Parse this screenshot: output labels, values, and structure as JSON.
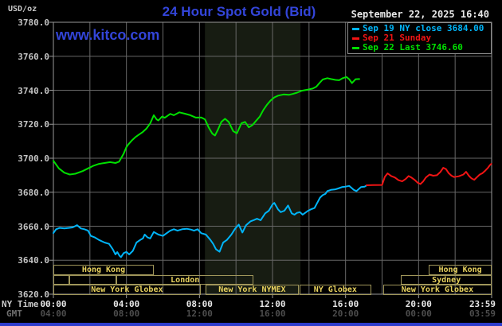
{
  "header": {
    "unit_label": "USD/oz",
    "title": "24 Hour Spot Gold (Bid)",
    "datetime": "September 22, 2025 16:40",
    "watermark": "www.kitco.com"
  },
  "legend": {
    "items": [
      {
        "label": "Sep 19 NY close 3684.00",
        "color": "#00b4f8"
      },
      {
        "label": "Sep 21 Sunday",
        "color": "#f01414"
      },
      {
        "label": "Sep 22 Last 3746.60",
        "color": "#00e000"
      }
    ]
  },
  "colors": {
    "background": "#000000",
    "grid": "#686868",
    "border": "#989898",
    "band": "#171c12",
    "title_blue": "#3345d9",
    "session_border": "#a0965a",
    "session_text": "#e8d25e",
    "bottom_strip": "#2d3ccc"
  },
  "chart_data": {
    "type": "line",
    "title": "24 Hour Spot Gold (Bid)",
    "y_axis": {
      "unit": "USD/oz",
      "min": 3620,
      "max": 3780,
      "tick_step": 20,
      "tick_labels": [
        "3780.0",
        "3760.0",
        "3740.0",
        "3720.0",
        "3700.0",
        "3680.0",
        "3660.0",
        "3640.0",
        "3620.0"
      ]
    },
    "x_axis": {
      "label_ny": "NY Time",
      "label_gmt": "GMT",
      "range_hours": [
        0,
        24
      ],
      "gridline_every_hours": 2,
      "tick_hours": [
        0,
        4,
        8,
        12,
        16,
        20,
        24
      ],
      "ny_ticks": [
        "00:00",
        "04:00",
        "08:00",
        "12:00",
        "16:00",
        "20:00",
        "23:59"
      ],
      "gmt_ticks": [
        "04:00",
        "08:00",
        "12:00",
        "16:00",
        "20:00",
        "00:00",
        "03:59"
      ]
    },
    "highlight_band": {
      "start_hour": 8.3,
      "end_hour": 13.53
    },
    "series": [
      {
        "name": "Sep 19 NY close",
        "color": "#00b4f8",
        "close_value": 3684.0,
        "points": [
          [
            0,
            3656
          ],
          [
            0.15,
            3658.2
          ],
          [
            0.35,
            3659
          ],
          [
            0.6,
            3658.7
          ],
          [
            0.85,
            3659
          ],
          [
            1.05,
            3659.3
          ],
          [
            1.3,
            3660.6
          ],
          [
            1.5,
            3658.7
          ],
          [
            1.7,
            3658.2
          ],
          [
            1.9,
            3657.4
          ],
          [
            2.05,
            3654.3
          ],
          [
            2.25,
            3653.5
          ],
          [
            2.5,
            3651.9
          ],
          [
            2.8,
            3650.4
          ],
          [
            3.05,
            3649.6
          ],
          [
            3.25,
            3646.5
          ],
          [
            3.4,
            3643.4
          ],
          [
            3.5,
            3644.8
          ],
          [
            3.62,
            3642.6
          ],
          [
            3.7,
            3641.8
          ],
          [
            3.85,
            3644.2
          ],
          [
            4.0,
            3644.9
          ],
          [
            4.15,
            3643.4
          ],
          [
            4.35,
            3645.5
          ],
          [
            4.55,
            3650.4
          ],
          [
            4.75,
            3651.9
          ],
          [
            4.9,
            3652.8
          ],
          [
            5.0,
            3655.1
          ],
          [
            5.15,
            3653.5
          ],
          [
            5.3,
            3652.8
          ],
          [
            5.5,
            3656.6
          ],
          [
            5.75,
            3655.1
          ],
          [
            6.0,
            3654.3
          ],
          [
            6.2,
            3655.9
          ],
          [
            6.4,
            3657.4
          ],
          [
            6.6,
            3658.2
          ],
          [
            6.8,
            3657.4
          ],
          [
            7.05,
            3658.2
          ],
          [
            7.3,
            3658.5
          ],
          [
            7.55,
            3658
          ],
          [
            7.7,
            3657.4
          ],
          [
            7.9,
            3658.2
          ],
          [
            8.1,
            3655.9
          ],
          [
            8.35,
            3655.1
          ],
          [
            8.6,
            3651.9
          ],
          [
            8.75,
            3649.6
          ],
          [
            8.9,
            3646.5
          ],
          [
            9.1,
            3645
          ],
          [
            9.3,
            3650.4
          ],
          [
            9.5,
            3651.9
          ],
          [
            9.75,
            3655.1
          ],
          [
            9.95,
            3658.5
          ],
          [
            10.15,
            3661
          ],
          [
            10.35,
            3656.3
          ],
          [
            10.55,
            3660.6
          ],
          [
            10.8,
            3662.9
          ],
          [
            11.0,
            3663.7
          ],
          [
            11.15,
            3664.4
          ],
          [
            11.35,
            3663.5
          ],
          [
            11.6,
            3667.6
          ],
          [
            11.8,
            3669.1
          ],
          [
            12.0,
            3672.8
          ],
          [
            12.1,
            3673.7
          ],
          [
            12.3,
            3669.9
          ],
          [
            12.45,
            3668.3
          ],
          [
            12.65,
            3669.1
          ],
          [
            12.85,
            3672.2
          ],
          [
            13.05,
            3667.6
          ],
          [
            13.2,
            3666.8
          ],
          [
            13.35,
            3667.9
          ],
          [
            13.5,
            3668.3
          ],
          [
            13.65,
            3666.8
          ],
          [
            13.95,
            3669.1
          ],
          [
            14.1,
            3669.9
          ],
          [
            14.3,
            3670.7
          ],
          [
            14.45,
            3673.7
          ],
          [
            14.6,
            3676.8
          ],
          [
            14.75,
            3678.3
          ],
          [
            14.9,
            3679.1
          ],
          [
            15.0,
            3680.7
          ],
          [
            15.2,
            3681.4
          ],
          [
            15.45,
            3681.7
          ],
          [
            15.6,
            3682.2
          ],
          [
            15.8,
            3683
          ],
          [
            16.0,
            3683.3
          ],
          [
            16.2,
            3683.7
          ],
          [
            16.45,
            3681.4
          ],
          [
            16.6,
            3680.7
          ],
          [
            16.85,
            3683
          ],
          [
            17.05,
            3683.3
          ],
          [
            17.15,
            3684
          ]
        ]
      },
      {
        "name": "Sep 21 Sunday",
        "color": "#f01414",
        "points": [
          [
            17.15,
            3684.1
          ],
          [
            17.5,
            3684.2
          ],
          [
            18.0,
            3684.3
          ],
          [
            18.15,
            3689
          ],
          [
            18.3,
            3691.1
          ],
          [
            18.5,
            3689.5
          ],
          [
            18.7,
            3688.7
          ],
          [
            18.9,
            3687.1
          ],
          [
            19.1,
            3686.4
          ],
          [
            19.3,
            3687.9
          ],
          [
            19.45,
            3689.5
          ],
          [
            19.6,
            3688.7
          ],
          [
            19.8,
            3687.1
          ],
          [
            19.95,
            3685.6
          ],
          [
            20.1,
            3684.8
          ],
          [
            20.25,
            3686.4
          ],
          [
            20.4,
            3688.7
          ],
          [
            20.6,
            3690.4
          ],
          [
            20.8,
            3689.7
          ],
          [
            21.0,
            3690
          ],
          [
            21.2,
            3692
          ],
          [
            21.35,
            3694.4
          ],
          [
            21.5,
            3693.6
          ],
          [
            21.65,
            3691.2
          ],
          [
            21.8,
            3689.7
          ],
          [
            21.95,
            3688.9
          ],
          [
            22.2,
            3689.4
          ],
          [
            22.45,
            3690.4
          ],
          [
            22.6,
            3692
          ],
          [
            22.75,
            3689.7
          ],
          [
            22.9,
            3688.1
          ],
          [
            23.05,
            3687.3
          ],
          [
            23.2,
            3688.9
          ],
          [
            23.35,
            3690.4
          ],
          [
            23.5,
            3691.2
          ],
          [
            23.65,
            3692.7
          ],
          [
            23.8,
            3694.4
          ],
          [
            23.9,
            3695.9
          ],
          [
            23.98,
            3696.7
          ]
        ]
      },
      {
        "name": "Sep 22",
        "color": "#00e000",
        "last_value": 3746.6,
        "points": [
          [
            0,
            3698.5
          ],
          [
            0.3,
            3694
          ],
          [
            0.6,
            3691.5
          ],
          [
            0.9,
            3690.4
          ],
          [
            1.2,
            3690.9
          ],
          [
            1.6,
            3692.4
          ],
          [
            1.9,
            3694
          ],
          [
            2.2,
            3695.6
          ],
          [
            2.5,
            3696.7
          ],
          [
            2.8,
            3697.2
          ],
          [
            3.1,
            3697.7
          ],
          [
            3.4,
            3697.2
          ],
          [
            3.6,
            3698
          ],
          [
            3.85,
            3702.7
          ],
          [
            4.0,
            3706.6
          ],
          [
            4.1,
            3708.1
          ],
          [
            4.3,
            3710.5
          ],
          [
            4.5,
            3712.5
          ],
          [
            4.7,
            3714
          ],
          [
            4.9,
            3715.5
          ],
          [
            5.1,
            3717.5
          ],
          [
            5.3,
            3720.5
          ],
          [
            5.5,
            3725.3
          ],
          [
            5.65,
            3722.9
          ],
          [
            5.75,
            3722.2
          ],
          [
            5.95,
            3724.5
          ],
          [
            6.1,
            3723.8
          ],
          [
            6.4,
            3726.1
          ],
          [
            6.6,
            3725.3
          ],
          [
            6.9,
            3727
          ],
          [
            7.2,
            3726.2
          ],
          [
            7.5,
            3725.3
          ],
          [
            7.8,
            3723.9
          ],
          [
            8.1,
            3724
          ],
          [
            8.3,
            3722.9
          ],
          [
            8.5,
            3718.2
          ],
          [
            8.7,
            3714.5
          ],
          [
            8.85,
            3713.4
          ],
          [
            9.0,
            3716.6
          ],
          [
            9.2,
            3721.4
          ],
          [
            9.4,
            3723.2
          ],
          [
            9.6,
            3721.4
          ],
          [
            9.85,
            3715.9
          ],
          [
            10.05,
            3714.7
          ],
          [
            10.3,
            3720.6
          ],
          [
            10.5,
            3721.4
          ],
          [
            10.7,
            3718.2
          ],
          [
            10.9,
            3719.5
          ],
          [
            11.05,
            3721.4
          ],
          [
            11.3,
            3724.5
          ],
          [
            11.5,
            3728.4
          ],
          [
            11.7,
            3731.5
          ],
          [
            11.9,
            3734
          ],
          [
            12.1,
            3735.8
          ],
          [
            12.3,
            3736.8
          ],
          [
            12.6,
            3737.5
          ],
          [
            12.9,
            3737.3
          ],
          [
            13.1,
            3737.8
          ],
          [
            13.35,
            3738.6
          ],
          [
            13.6,
            3739.7
          ],
          [
            13.9,
            3740.3
          ],
          [
            14.2,
            3741
          ],
          [
            14.4,
            3742.1
          ],
          [
            14.55,
            3744
          ],
          [
            14.75,
            3746.3
          ],
          [
            15.0,
            3747.1
          ],
          [
            15.2,
            3746.6
          ],
          [
            15.45,
            3746.1
          ],
          [
            15.65,
            3745.9
          ],
          [
            15.85,
            3747.1
          ],
          [
            16.05,
            3747.8
          ],
          [
            16.2,
            3746.5
          ],
          [
            16.35,
            3744.2
          ],
          [
            16.55,
            3746.5
          ],
          [
            16.75,
            3746.6
          ]
        ]
      }
    ]
  },
  "sessions": {
    "rows": [
      [
        {
          "label": "Hong Kong",
          "start": 0,
          "end": 5.5
        },
        {
          "label": "Hong Kong",
          "start": 20.56,
          "end": 24
        }
      ],
      [
        {
          "label": "",
          "start": 0,
          "end": 0.87
        },
        {
          "label": "",
          "start": 0.87,
          "end": 3.45
        },
        {
          "label": "London",
          "start": 3.45,
          "end": 10.97
        },
        {
          "label": "Sydney",
          "start": 19.04,
          "end": 24
        }
      ],
      [
        {
          "label": "New York Globex",
          "start": 0,
          "end": 8.06
        },
        {
          "label": "New York NYMEX",
          "start": 8.32,
          "end": 13.45
        },
        {
          "label": "NY Globex",
          "start": 13.48,
          "end": 17.4
        },
        {
          "label": "New York Globex",
          "start": 18.06,
          "end": 24
        }
      ]
    ]
  }
}
